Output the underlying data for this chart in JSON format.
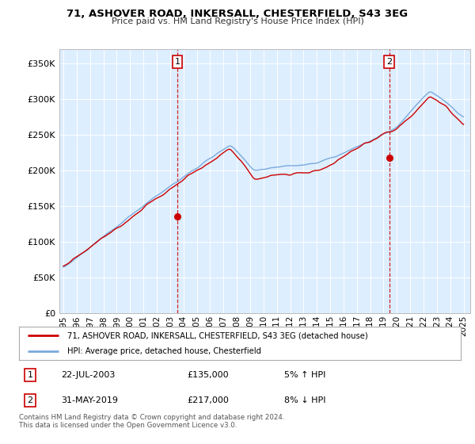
{
  "title": "71, ASHOVER ROAD, INKERSALL, CHESTERFIELD, S43 3EG",
  "subtitle": "Price paid vs. HM Land Registry's House Price Index (HPI)",
  "legend_line1": "71, ASHOVER ROAD, INKERSALL, CHESTERFIELD, S43 3EG (detached house)",
  "legend_line2": "HPI: Average price, detached house, Chesterfield",
  "annotation1": {
    "label": "1",
    "date": "22-JUL-2003",
    "price": "£135,000",
    "pct": "5% ↑ HPI",
    "x_year": 2003.55
  },
  "annotation2": {
    "label": "2",
    "date": "31-MAY-2019",
    "price": "£217,000",
    "pct": "8% ↓ HPI",
    "x_year": 2019.42
  },
  "footer": "Contains HM Land Registry data © Crown copyright and database right 2024.\nThis data is licensed under the Open Government Licence v3.0.",
  "red_color": "#cc0000",
  "blue_color": "#7aaadd",
  "bg_color": "#ddeeff",
  "ylim": [
    0,
    370000
  ],
  "xlim_start": 1994.7,
  "xlim_end": 2025.5,
  "yticks": [
    0,
    50000,
    100000,
    150000,
    200000,
    250000,
    300000,
    350000
  ],
  "ytick_labels": [
    "£0",
    "£50K",
    "£100K",
    "£150K",
    "£200K",
    "£250K",
    "£300K",
    "£350K"
  ],
  "xticks": [
    1995,
    1996,
    1997,
    1998,
    1999,
    2000,
    2001,
    2002,
    2003,
    2004,
    2005,
    2006,
    2007,
    2008,
    2009,
    2010,
    2011,
    2012,
    2013,
    2014,
    2015,
    2016,
    2017,
    2018,
    2019,
    2020,
    2021,
    2022,
    2023,
    2024,
    2025
  ]
}
